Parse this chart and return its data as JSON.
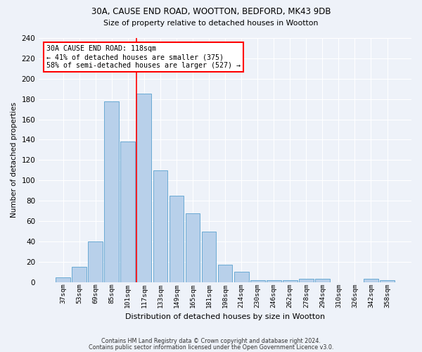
{
  "title1": "30A, CAUSE END ROAD, WOOTTON, BEDFORD, MK43 9DB",
  "title2": "Size of property relative to detached houses in Wootton",
  "xlabel": "Distribution of detached houses by size in Wootton",
  "ylabel": "Number of detached properties",
  "categories": [
    "37sqm",
    "53sqm",
    "69sqm",
    "85sqm",
    "101sqm",
    "117sqm",
    "133sqm",
    "149sqm",
    "165sqm",
    "181sqm",
    "198sqm",
    "214sqm",
    "230sqm",
    "246sqm",
    "262sqm",
    "278sqm",
    "294sqm",
    "310sqm",
    "326sqm",
    "342sqm",
    "358sqm"
  ],
  "values": [
    5,
    15,
    40,
    178,
    138,
    185,
    110,
    85,
    68,
    50,
    17,
    10,
    2,
    2,
    2,
    3,
    3,
    0,
    0,
    3,
    2
  ],
  "bar_color": "#b8d0ea",
  "bar_edge_color": "#6aaad4",
  "vline_color": "red",
  "ylim": [
    0,
    240
  ],
  "yticks": [
    0,
    20,
    40,
    60,
    80,
    100,
    120,
    140,
    160,
    180,
    200,
    220,
    240
  ],
  "background_color": "#eef2f9",
  "grid_color": "white",
  "annotation_line1": "30A CAUSE END ROAD: 118sqm",
  "annotation_line2": "← 41% of detached houses are smaller (375)",
  "annotation_line3": "58% of semi-detached houses are larger (527) →",
  "footnote1": "Contains HM Land Registry data © Crown copyright and database right 2024.",
  "footnote2": "Contains public sector information licensed under the Open Government Licence v3.0."
}
